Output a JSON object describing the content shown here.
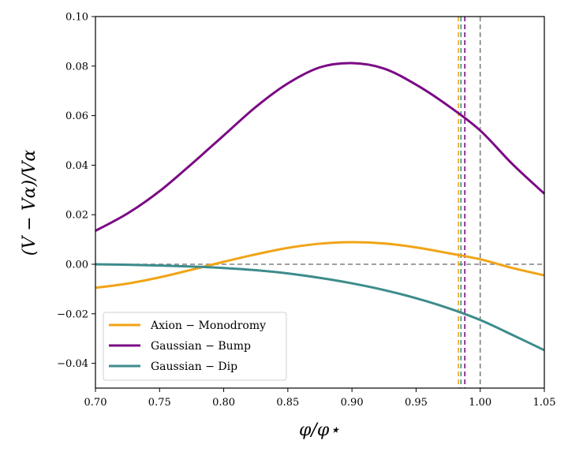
{
  "chart_data": {
    "type": "line",
    "title": "",
    "xlabel": "φ/φ⋆",
    "ylabel": "(V − Vα)/Vα",
    "xlim": [
      0.7,
      1.05
    ],
    "ylim": [
      -0.05,
      0.1
    ],
    "xticks": [
      0.7,
      0.75,
      0.8,
      0.85,
      0.9,
      0.95,
      1.0,
      1.05
    ],
    "xtick_labels": [
      "0.70",
      "0.75",
      "0.80",
      "0.85",
      "0.90",
      "0.95",
      "1.00",
      "1.05"
    ],
    "yticks": [
      -0.04,
      -0.02,
      0.0,
      0.02,
      0.04,
      0.06,
      0.08,
      0.1
    ],
    "ytick_labels": [
      "−0.04",
      "−0.02",
      "0.00",
      "0.02",
      "0.04",
      "0.06",
      "0.08",
      "0.10"
    ],
    "grid": false,
    "legend_position": "lower-left",
    "hline": {
      "y": 0.0,
      "color": "#808080",
      "style": "dashed"
    },
    "vlines": [
      {
        "x": 0.983,
        "color": "#f0a417",
        "style": "dashed"
      },
      {
        "x": 0.985,
        "color": "#3d8c8c",
        "style": "dashed"
      },
      {
        "x": 0.988,
        "color": "#7b0a85",
        "style": "dashed"
      },
      {
        "x": 1.0,
        "color": "#808080",
        "style": "dashed"
      }
    ],
    "x": [
      0.7,
      0.725,
      0.75,
      0.775,
      0.8,
      0.825,
      0.85,
      0.875,
      0.9,
      0.925,
      0.95,
      0.975,
      1.0,
      1.025,
      1.05
    ],
    "series": [
      {
        "name": "Axion − Monodromy",
        "color": "#f0a417",
        "values": [
          -0.0095,
          -0.0078,
          -0.0053,
          -0.0022,
          0.001,
          0.004,
          0.0066,
          0.0083,
          0.0089,
          0.0084,
          0.0068,
          0.0045,
          0.002,
          -0.0015,
          -0.0045
        ]
      },
      {
        "name": "Gaussian − Bump",
        "color": "#7b0a85",
        "values": [
          0.0135,
          0.0205,
          0.0295,
          0.0405,
          0.052,
          0.0635,
          0.073,
          0.0795,
          0.0812,
          0.079,
          0.0725,
          0.064,
          0.054,
          0.0405,
          0.0285
        ]
      },
      {
        "name": "Gaussian − Dip",
        "color": "#3d8c8c",
        "values": [
          0.0,
          -0.0002,
          -0.0005,
          -0.0009,
          -0.0015,
          -0.0024,
          -0.0037,
          -0.0055,
          -0.0077,
          -0.0104,
          -0.0137,
          -0.0177,
          -0.0225,
          -0.0285,
          -0.0347
        ]
      }
    ]
  }
}
